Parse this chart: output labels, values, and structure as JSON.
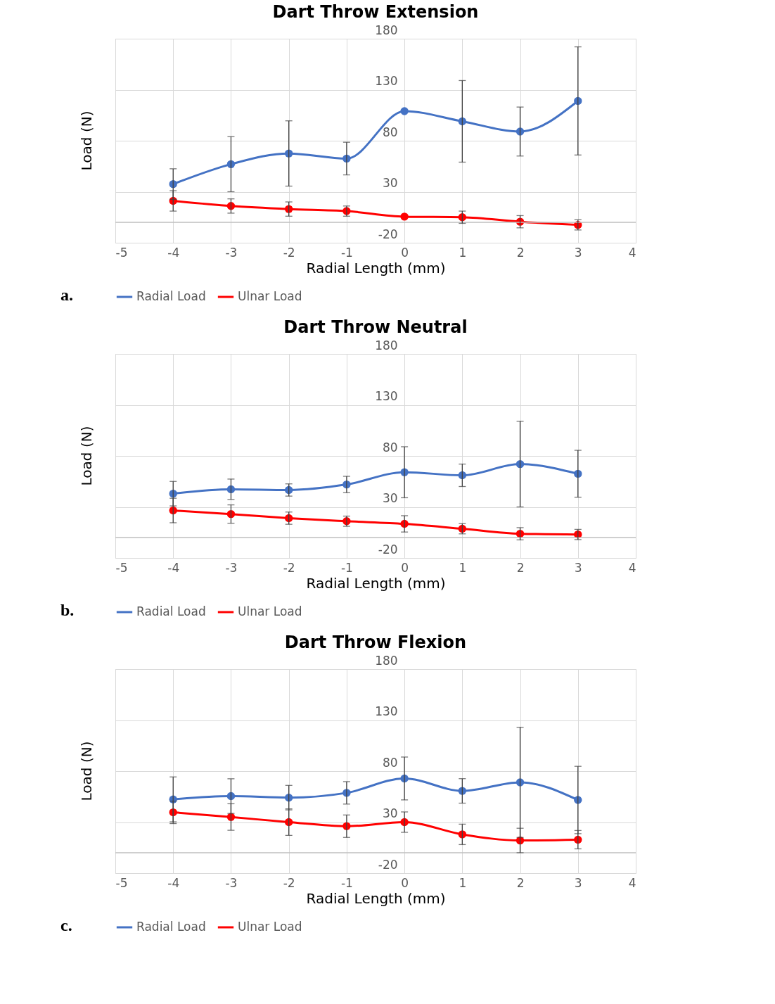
{
  "chart_data": [
    {
      "type": "line",
      "title": "Dart Throw Extension",
      "xlabel": "Radial Length (mm)",
      "ylabel": "Load (N)",
      "annotations": [
        "a."
      ],
      "x": [
        -4,
        -3,
        -2,
        -1,
        0,
        1,
        2,
        3
      ],
      "xlim": [
        -5,
        4
      ],
      "xticks": [
        -5,
        -4,
        -3,
        -2,
        -1,
        0,
        1,
        2,
        3,
        4
      ],
      "ylim": [
        -20,
        180
      ],
      "yticks": [
        -20,
        30,
        80,
        130,
        180
      ],
      "ref_lines": [
        {
          "axis": "y",
          "value": 0,
          "color": "#bfbfbf"
        }
      ],
      "grid": true,
      "legend": "bottom",
      "marker": "circle",
      "series": [
        {
          "name": "Radial Load",
          "color": "#4472c4",
          "values": [
            37.5,
            57,
            67.5,
            62.5,
            109,
            99,
            89,
            119
          ],
          "errors": [
            15,
            27,
            32,
            16,
            null,
            40,
            24,
            53
          ]
        },
        {
          "name": "Ulnar Load",
          "color": "#ff0000",
          "values": [
            21,
            16,
            13,
            11,
            5.6,
            5,
            0.6,
            -2.5
          ],
          "errors": [
            10,
            7,
            7,
            5,
            null,
            6,
            6,
            5
          ]
        }
      ]
    },
    {
      "type": "line",
      "title": "Dart Throw Neutral",
      "xlabel": "Radial Length (mm)",
      "ylabel": "Load (N)",
      "annotations": [
        "b."
      ],
      "x": [
        -4,
        -3,
        -2,
        -1,
        0,
        1,
        2,
        3
      ],
      "xlim": [
        -5,
        4
      ],
      "xticks": [
        -5,
        -4,
        -3,
        -2,
        -1,
        0,
        1,
        2,
        3,
        4
      ],
      "ylim": [
        -20,
        180
      ],
      "yticks": [
        -20,
        30,
        80,
        130,
        180
      ],
      "ref_lines": [
        {
          "axis": "y",
          "value": 0,
          "color": "#bfbfbf"
        }
      ],
      "grid": true,
      "legend": "bottom",
      "marker": "circle",
      "series": [
        {
          "name": "Radial Load",
          "color": "#4472c4",
          "values": [
            43,
            47.3,
            46.6,
            52,
            64,
            61,
            72,
            62.5
          ],
          "errors": [
            12,
            10,
            6,
            8,
            25,
            11,
            42,
            23
          ]
        },
        {
          "name": "Ulnar Load",
          "color": "#ff0000",
          "values": [
            26.5,
            23,
            19,
            16,
            13.4,
            8.6,
            3.7,
            3
          ],
          "errors": [
            12,
            9,
            6,
            5,
            8,
            5,
            6,
            5
          ]
        }
      ]
    },
    {
      "type": "line",
      "title": "Dart Throw Flexion",
      "xlabel": "Radial Length (mm)",
      "ylabel": "Load (N)",
      "annotations": [
        "c."
      ],
      "x": [
        -4,
        -3,
        -2,
        -1,
        0,
        1,
        2,
        3
      ],
      "xlim": [
        -5,
        4
      ],
      "xticks": [
        -5,
        -4,
        -3,
        -2,
        -1,
        0,
        1,
        2,
        3,
        4
      ],
      "ylim": [
        -20,
        180
      ],
      "yticks": [
        -20,
        30,
        80,
        130,
        180
      ],
      "ref_lines": [
        {
          "axis": "y",
          "value": 0,
          "color": "#bfbfbf"
        }
      ],
      "grid": true,
      "legend": "bottom",
      "marker": "circle",
      "series": [
        {
          "name": "Radial Load",
          "color": "#4472c4",
          "values": [
            52.3,
            55.5,
            54,
            58.7,
            72.8,
            60.6,
            69,
            51.7
          ],
          "errors": [
            22,
            17,
            12,
            11,
            21,
            12,
            54,
            33
          ]
        },
        {
          "name": "Ulnar Load",
          "color": "#ff0000",
          "values": [
            39.6,
            35,
            30,
            26,
            30,
            18,
            12,
            12.8
          ],
          "errors": [
            11,
            13,
            13,
            11,
            10,
            10,
            12,
            9
          ]
        }
      ]
    }
  ]
}
